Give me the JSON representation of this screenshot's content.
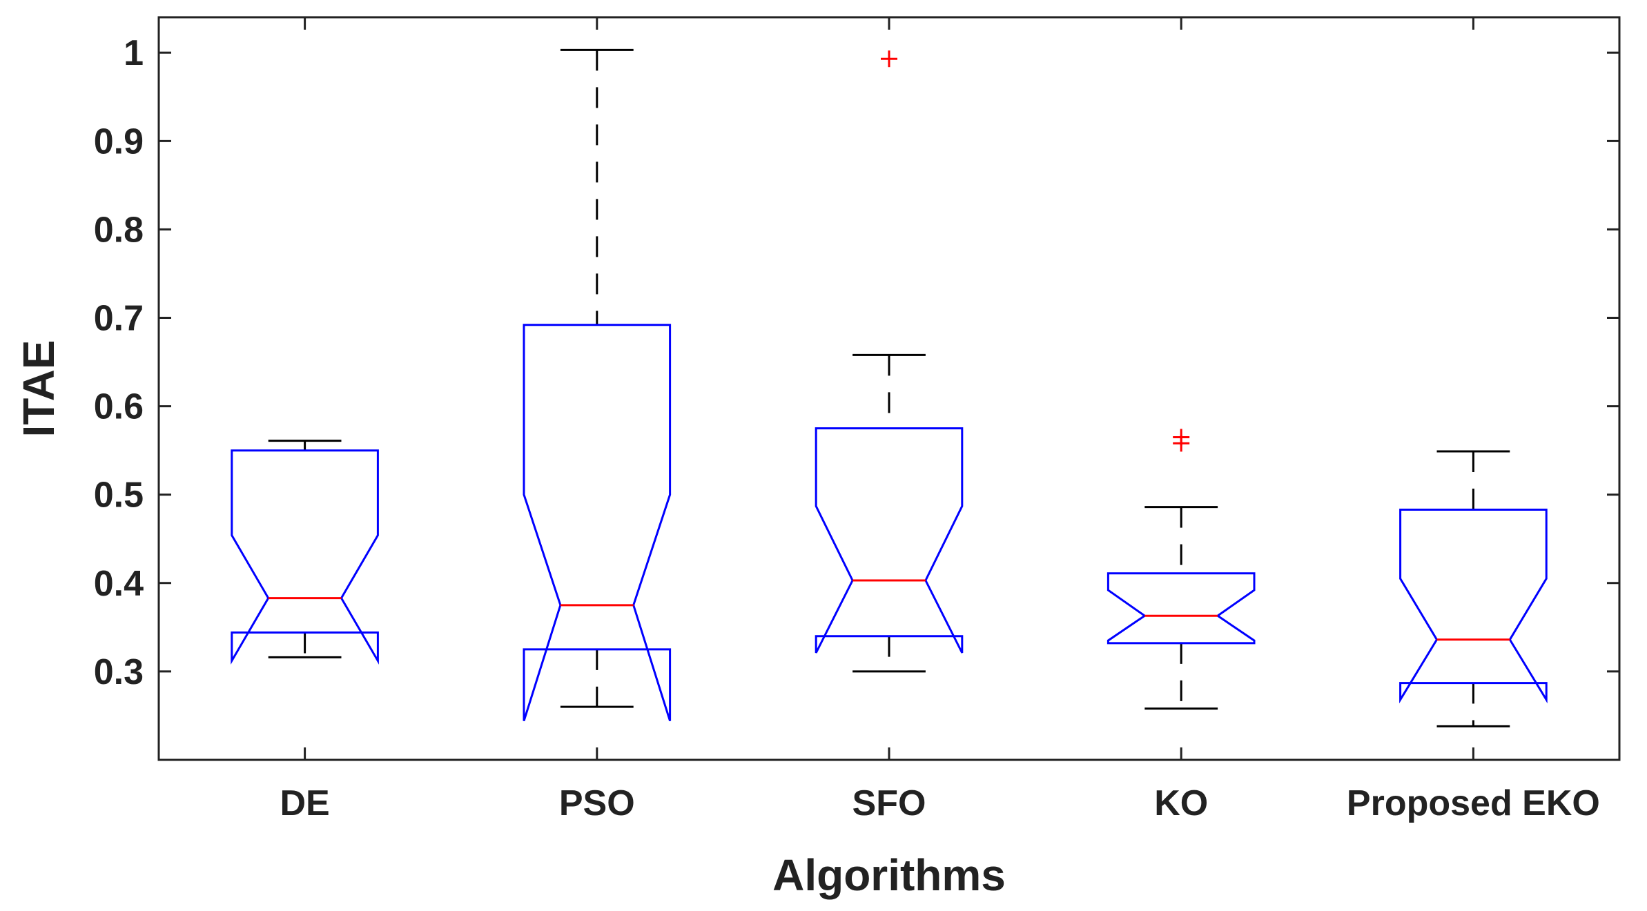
{
  "chart_data": {
    "type": "boxplot",
    "title": "",
    "xlabel": "Algorithms",
    "ylabel": "ITAE",
    "ylim": [
      0.2,
      1.04
    ],
    "yticks": [
      0.3,
      0.4,
      0.5,
      0.6,
      0.7,
      0.8,
      0.9,
      1
    ],
    "ytick_labels": [
      "0.3",
      "0.4",
      "0.5",
      "0.6",
      "0.7",
      "0.8",
      "0.9",
      "1"
    ],
    "notched": true,
    "colors": {
      "box": "#0000ff",
      "median": "#ff0000",
      "whisker": "#000000",
      "outlier": "#ff0000",
      "axis": "#222222"
    },
    "boxes": [
      {
        "category": "DE",
        "lower_whisker": 0.316,
        "q1": 0.344,
        "median": 0.383,
        "q3": 0.55,
        "upper_whisker": 0.561,
        "notch_low": 0.312,
        "notch_high": 0.454,
        "outliers": []
      },
      {
        "category": "PSO",
        "lower_whisker": 0.26,
        "q1": 0.325,
        "median": 0.375,
        "q3": 0.692,
        "upper_whisker": 1.003,
        "notch_low": 0.244,
        "notch_high": 0.5,
        "outliers": []
      },
      {
        "category": "SFO",
        "lower_whisker": 0.3,
        "q1": 0.34,
        "median": 0.403,
        "q3": 0.575,
        "upper_whisker": 0.658,
        "notch_low": 0.321,
        "notch_high": 0.487,
        "outliers": [
          0.993
        ]
      },
      {
        "category": "KO",
        "lower_whisker": 0.258,
        "q1": 0.332,
        "median": 0.363,
        "q3": 0.411,
        "upper_whisker": 0.486,
        "notch_low": 0.335,
        "notch_high": 0.392,
        "outliers": [
          0.558,
          0.565
        ]
      },
      {
        "category": "Proposed EKO",
        "lower_whisker": 0.238,
        "q1": 0.287,
        "median": 0.336,
        "q3": 0.483,
        "upper_whisker": 0.549,
        "notch_low": 0.268,
        "notch_high": 0.405,
        "outliers": []
      }
    ]
  }
}
